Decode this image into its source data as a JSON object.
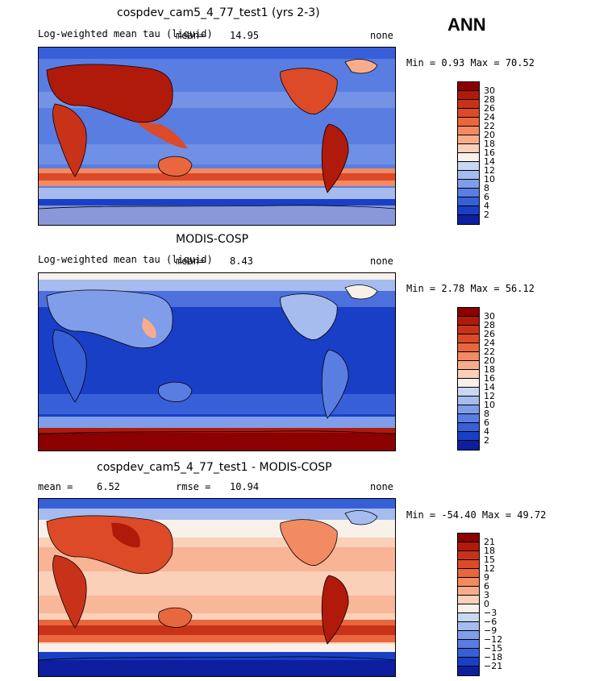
{
  "season": "ANN",
  "panels": [
    {
      "title": "cospdev_cam5_4_77_test1 (yrs 2-3)",
      "variable": "Log-weighted mean tau (liquid)",
      "mean_label": "mean=",
      "mean": "14.95",
      "units": "none",
      "minmax": "Min =   0.93 Max =  70.52",
      "colorbar": {
        "labels": [
          "30",
          "28",
          "26",
          "24",
          "22",
          "20",
          "18",
          "16",
          "14",
          "12",
          "10",
          "8",
          "6",
          "4",
          "2"
        ],
        "colors": [
          "#8b0000",
          "#b01a0a",
          "#c83219",
          "#dc4a28",
          "#e8673e",
          "#f28a62",
          "#f7ad8c",
          "#fbd0b8",
          "#f7f1ea",
          "#c9d7f2",
          "#a6bcee",
          "#7f9de8",
          "#5a7de2",
          "#3760d8",
          "#1a3fc7",
          "#0d1f9e"
        ]
      }
    },
    {
      "title": "MODIS-COSP",
      "variable": "Log-weighted mean tau (liquid)",
      "mean_label": "mean=",
      "mean": "8.43",
      "units": "none",
      "minmax": "Min =   2.78 Max =  56.12",
      "colorbar": {
        "labels": [
          "30",
          "28",
          "26",
          "24",
          "22",
          "20",
          "18",
          "16",
          "14",
          "12",
          "10",
          "8",
          "6",
          "4",
          "2"
        ],
        "colors": [
          "#8b0000",
          "#b01a0a",
          "#c83219",
          "#dc4a28",
          "#e8673e",
          "#f28a62",
          "#f7ad8c",
          "#fbd0b8",
          "#f7f1ea",
          "#c9d7f2",
          "#a6bcee",
          "#7f9de8",
          "#5a7de2",
          "#3760d8",
          "#1a3fc7",
          "#0d1f9e"
        ]
      }
    },
    {
      "title": "cospdev_cam5_4_77_test1 - MODIS-COSP",
      "mean_label": "mean =",
      "mean": "6.52",
      "rmse_label": "rmse =",
      "rmse": "10.94",
      "units": "none",
      "minmax": "Min = -54.40 Max =  49.72",
      "colorbar": {
        "labels": [
          "21",
          "18",
          "15",
          "12",
          "9",
          "6",
          "3",
          "0",
          "−3",
          "−6",
          "−9",
          "−12",
          "−15",
          "−18",
          "−21"
        ],
        "colors": [
          "#8b0000",
          "#b01a0a",
          "#c83219",
          "#dc4a28",
          "#e8673e",
          "#f28a62",
          "#f7ad8c",
          "#fbd0b8",
          "#f7f1ea",
          "#c9d7f2",
          "#a6bcee",
          "#7f9de8",
          "#5a7de2",
          "#3760d8",
          "#1a3fc7",
          "#0d1f9e"
        ]
      }
    }
  ]
}
